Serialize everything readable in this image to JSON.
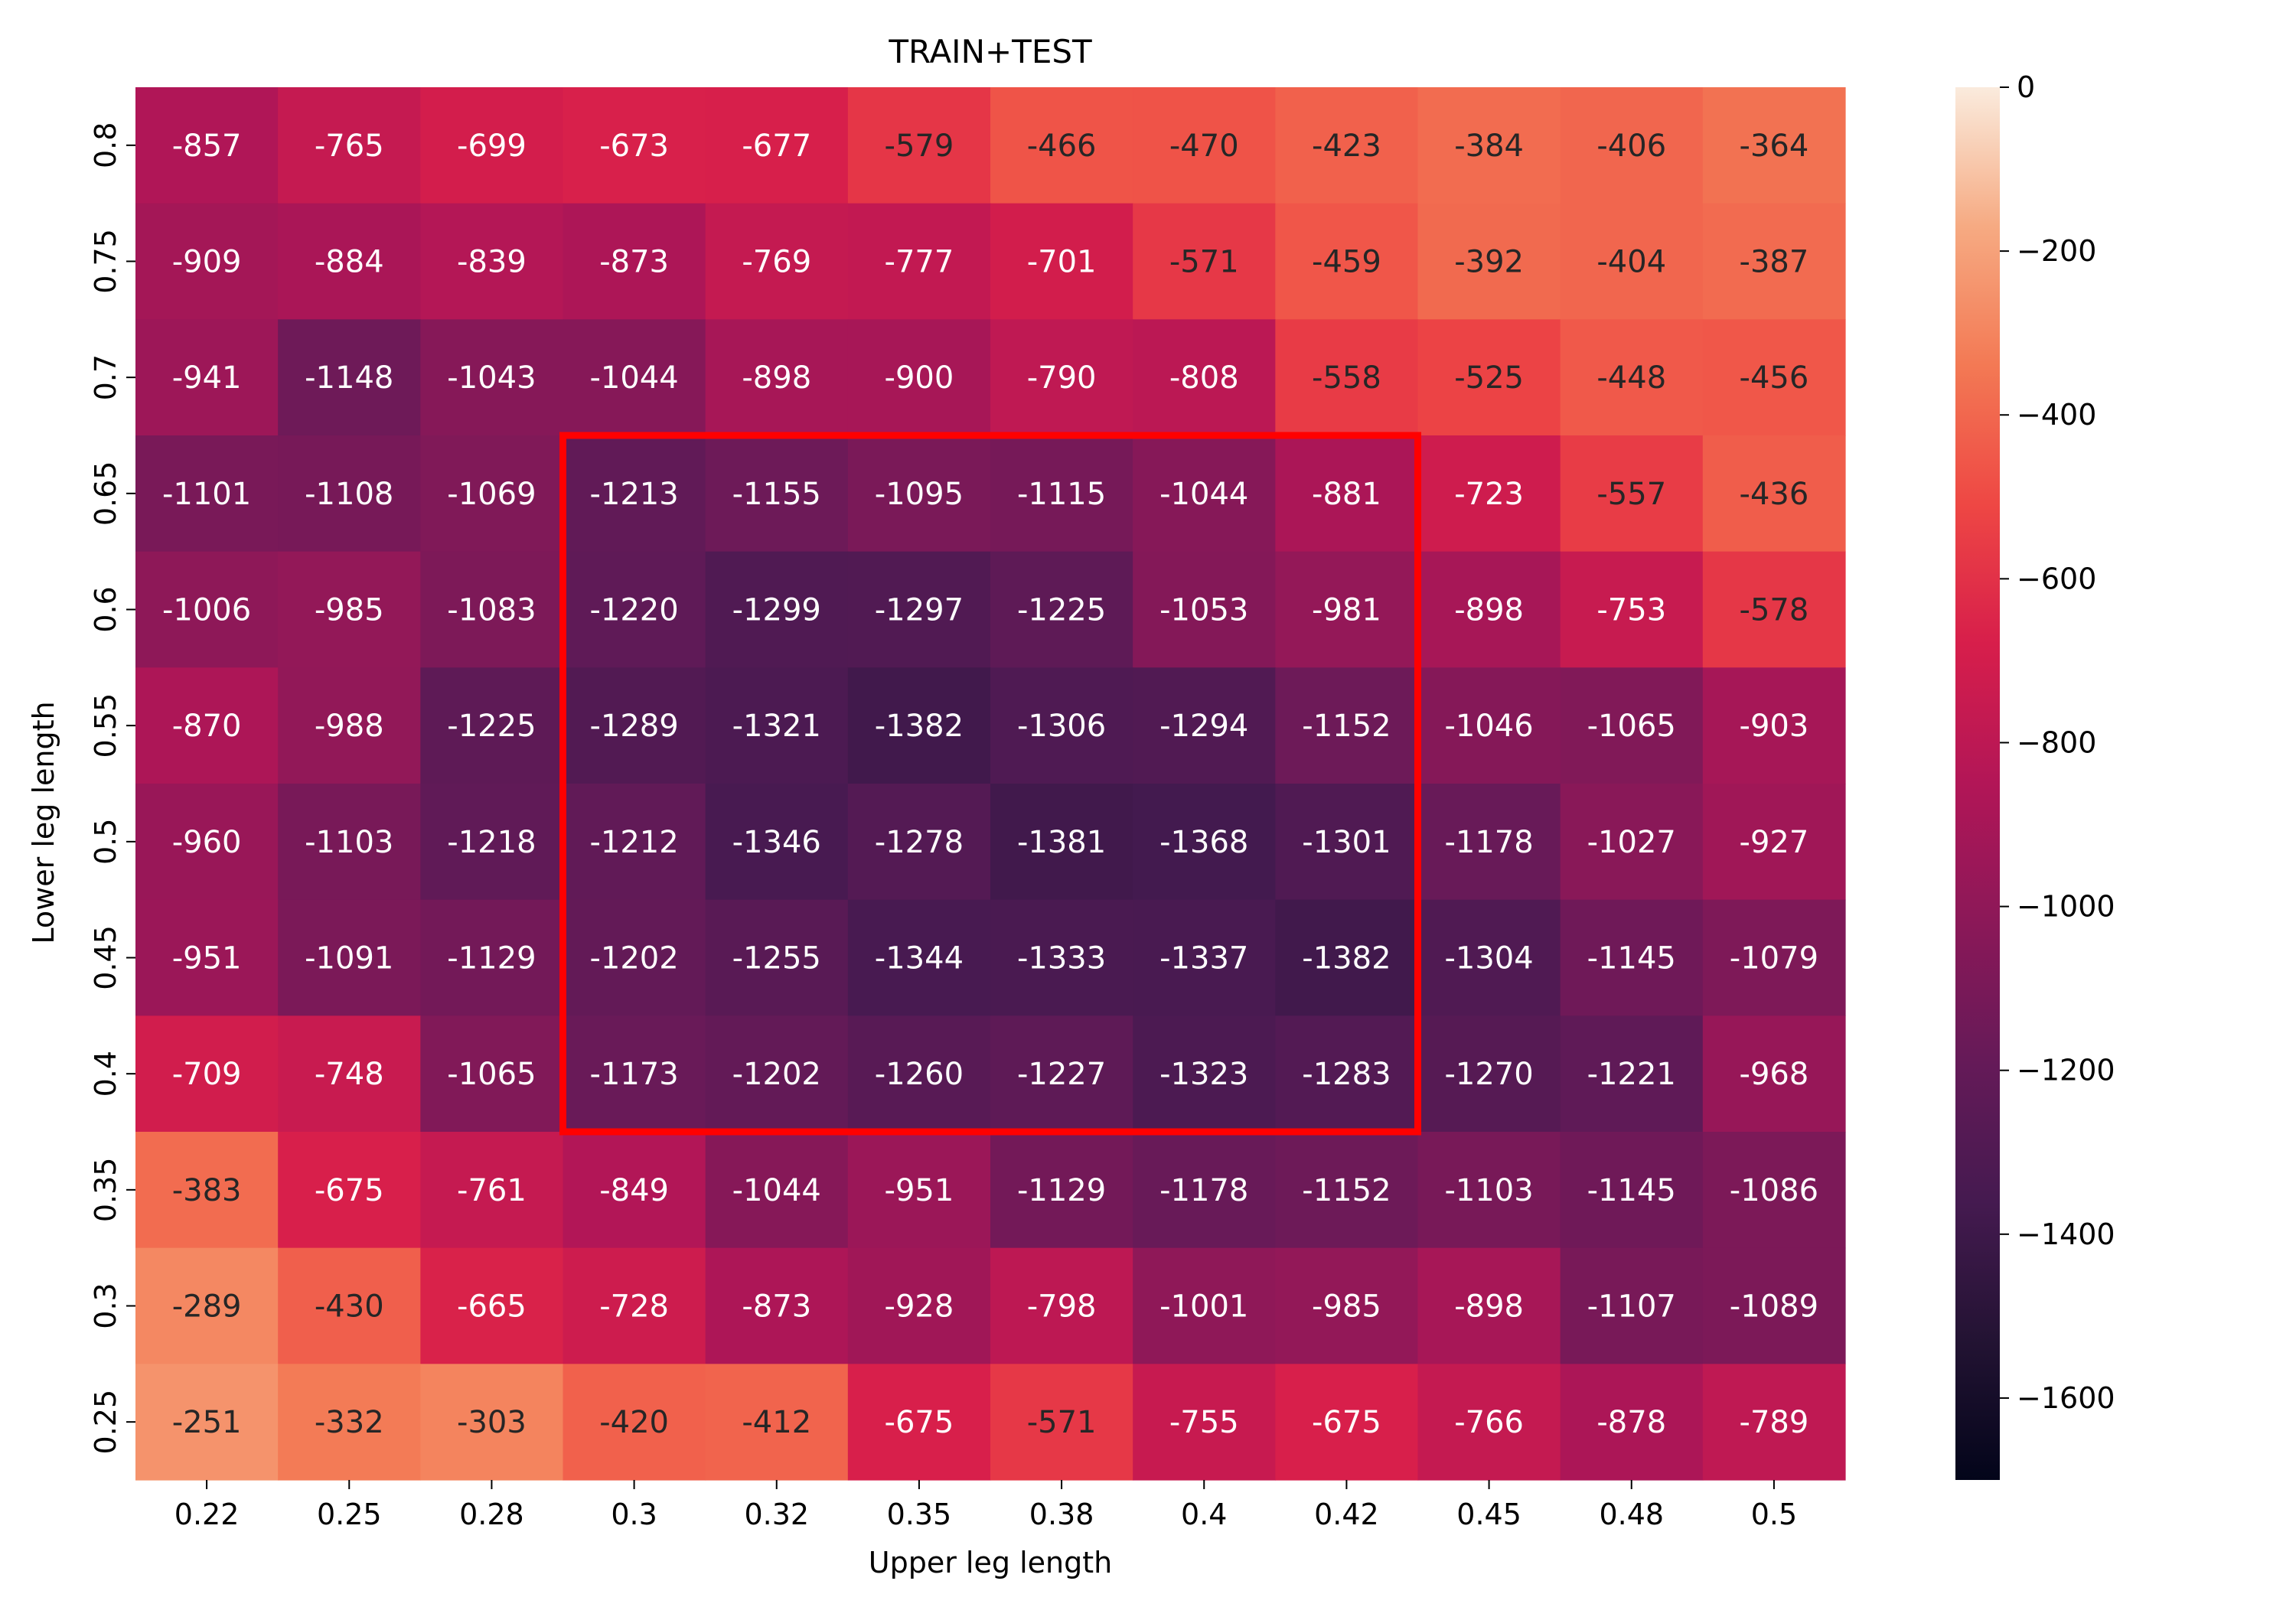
{
  "chart_data": {
    "type": "heatmap",
    "title": "TRAIN+TEST",
    "xlabel": "Upper leg length",
    "ylabel": "Lower leg length",
    "x_categories": [
      "0.22",
      "0.25",
      "0.28",
      "0.3",
      "0.32",
      "0.35",
      "0.38",
      "0.4",
      "0.42",
      "0.45",
      "0.48",
      "0.5"
    ],
    "y_categories": [
      "0.8",
      "0.75",
      "0.7",
      "0.65",
      "0.6",
      "0.55",
      "0.5",
      "0.45",
      "0.4",
      "0.35",
      "0.3",
      "0.25"
    ],
    "values": [
      [
        -857,
        -765,
        -699,
        -673,
        -677,
        -579,
        -466,
        -470,
        -423,
        -384,
        -406,
        -364
      ],
      [
        -909,
        -884,
        -839,
        -873,
        -769,
        -777,
        -701,
        -571,
        -459,
        -392,
        -404,
        -387
      ],
      [
        -941,
        -1148,
        -1043,
        -1044,
        -898,
        -900,
        -790,
        -808,
        -558,
        -525,
        -448,
        -456
      ],
      [
        -1101,
        -1108,
        -1069,
        -1213,
        -1155,
        -1095,
        -1115,
        -1044,
        -881,
        -723,
        -557,
        -436
      ],
      [
        -1006,
        -985,
        -1083,
        -1220,
        -1299,
        -1297,
        -1225,
        -1053,
        -981,
        -898,
        -753,
        -578
      ],
      [
        -870,
        -988,
        -1225,
        -1289,
        -1321,
        -1382,
        -1306,
        -1294,
        -1152,
        -1046,
        -1065,
        -903
      ],
      [
        -960,
        -1103,
        -1218,
        -1212,
        -1346,
        -1278,
        -1381,
        -1368,
        -1301,
        -1178,
        -1027,
        -927
      ],
      [
        -951,
        -1091,
        -1129,
        -1202,
        -1255,
        -1344,
        -1333,
        -1337,
        -1382,
        -1304,
        -1145,
        -1079
      ],
      [
        -709,
        -748,
        -1065,
        -1173,
        -1202,
        -1260,
        -1227,
        -1323,
        -1283,
        -1270,
        -1221,
        -968
      ],
      [
        -383,
        -675,
        -761,
        -849,
        -1044,
        -951,
        -1129,
        -1178,
        -1152,
        -1103,
        -1145,
        -1086
      ],
      [
        -289,
        -430,
        -665,
        -728,
        -873,
        -928,
        -798,
        -1001,
        -985,
        -898,
        -1107,
        -1089
      ],
      [
        -251,
        -332,
        -303,
        -420,
        -412,
        -675,
        -571,
        -755,
        -675,
        -766,
        -878,
        -789
      ]
    ],
    "value_range": [
      -1700,
      0
    ],
    "colorbar_ticks": [
      0,
      -200,
      -400,
      -600,
      -800,
      -1000,
      -1200,
      -1400,
      -1600
    ],
    "colorbar_tick_labels": [
      "0",
      "−200",
      "−400",
      "−600",
      "−800",
      "−1000",
      "−1200",
      "−1400",
      "−1600"
    ],
    "colormap": "rocket",
    "highlight_box": {
      "x_categories": [
        "0.3",
        "0.42"
      ],
      "y_categories": [
        "0.65",
        "0.4"
      ],
      "color": "#ff0000"
    }
  }
}
